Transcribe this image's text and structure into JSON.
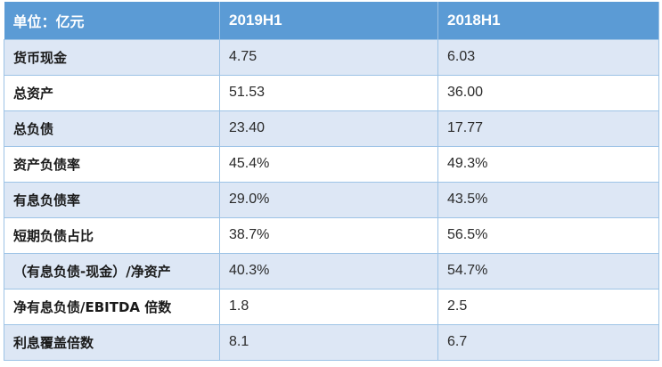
{
  "table": {
    "headers": [
      "单位：亿元",
      "2019H1",
      "2018H1"
    ],
    "rows": [
      [
        "货币现金",
        "4.75",
        "6.03"
      ],
      [
        "总资产",
        "51.53",
        "36.00"
      ],
      [
        "总负债",
        "23.40",
        "17.77"
      ],
      [
        "资产负债率",
        "45.4%",
        "49.3%"
      ],
      [
        "有息负债率",
        "29.0%",
        "43.5%"
      ],
      [
        "短期负债占比",
        "38.7%",
        "56.5%"
      ],
      [
        "（有息负债-现金）/净资产",
        "40.3%",
        "54.7%"
      ],
      [
        "净有息负债/EBITDA 倍数",
        "1.8",
        "2.5"
      ],
      [
        "利息覆盖倍数",
        "8.1",
        "6.7"
      ]
    ]
  },
  "colors": {
    "header_bg": "#5b9bd5",
    "band_bg": "#dde7f5",
    "border": "#9dc3e6"
  }
}
